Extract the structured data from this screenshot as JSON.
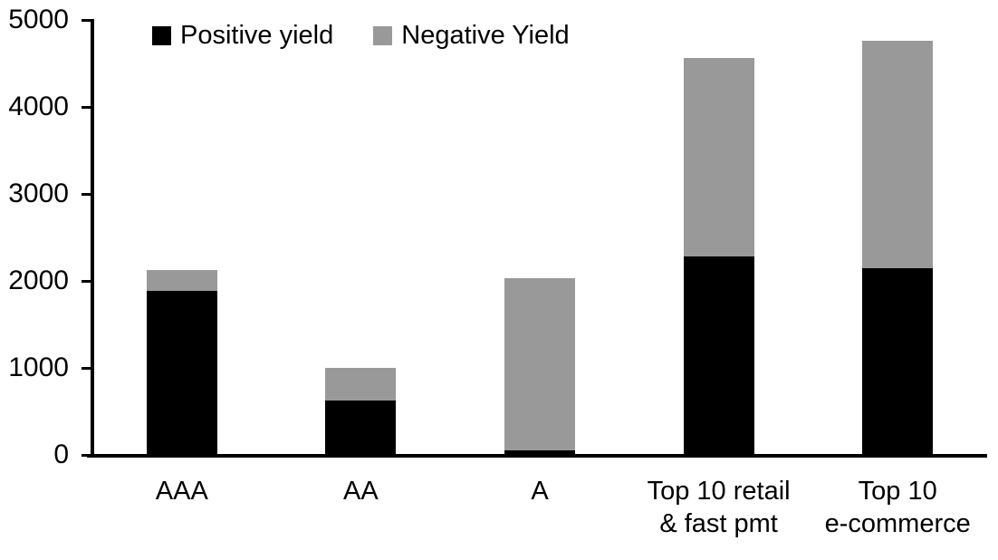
{
  "chart_data": {
    "type": "bar",
    "stacked": true,
    "title": "",
    "xlabel": "",
    "ylabel": "",
    "categories": [
      "AAA",
      "AA",
      "A",
      "Top 10 retail\n& fast pmt",
      "Top 10\ne-commerce"
    ],
    "series": [
      {
        "name": "Positive yield",
        "color": "#000000",
        "values": [
          1890,
          620,
          50,
          2280,
          2150
        ]
      },
      {
        "name": "Negative Yield",
        "color": "#999999",
        "values": [
          230,
          380,
          1985,
          2280,
          2610
        ]
      }
    ],
    "ylim": [
      0,
      5000
    ],
    "yticks": [
      0,
      1000,
      2000,
      3000,
      4000,
      5000
    ],
    "grid": false,
    "legend_position": "top-left-inside",
    "background_color": "#ffffff",
    "axis_color": "#000000"
  }
}
